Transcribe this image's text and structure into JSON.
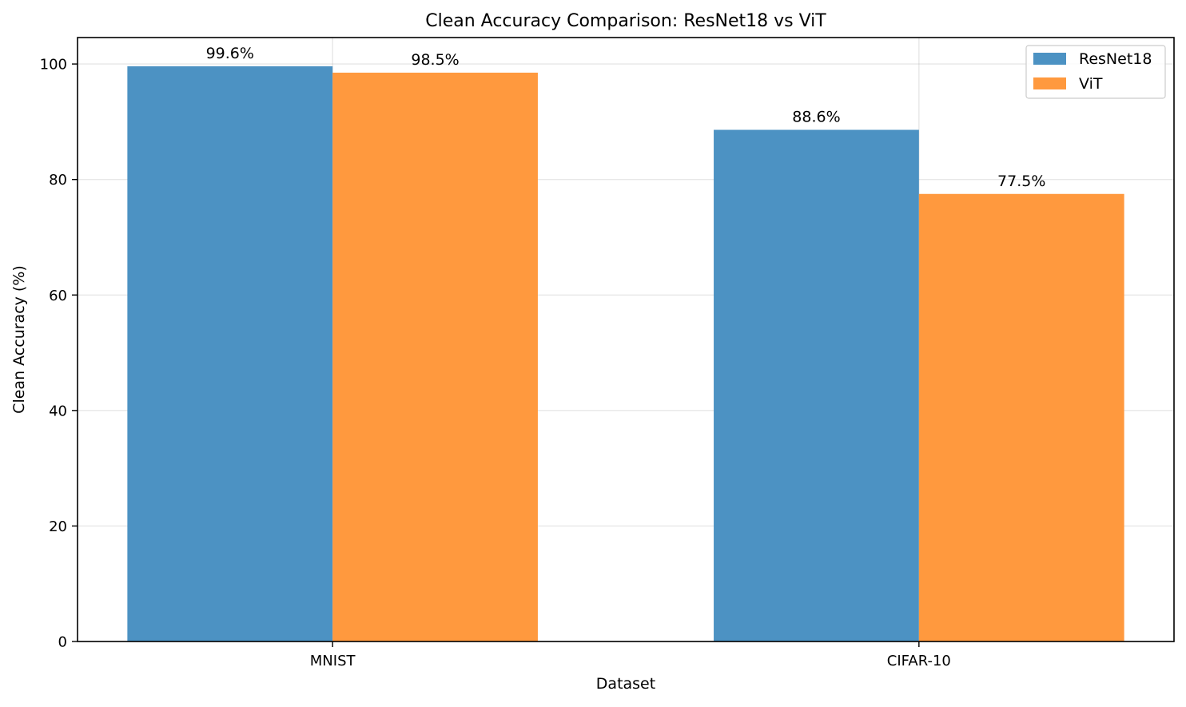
{
  "chart_data": {
    "type": "bar",
    "title": "Clean Accuracy Comparison: ResNet18 vs ViT",
    "xlabel": "Dataset",
    "ylabel": "Clean Accuracy (%)",
    "categories": [
      "MNIST",
      "CIFAR-10"
    ],
    "series": [
      {
        "name": "ResNet18",
        "color": "#4c92c3",
        "values": [
          99.6,
          88.6
        ],
        "labels": [
          "99.6%",
          "88.6%"
        ]
      },
      {
        "name": "ViT",
        "color": "#ff993e",
        "values": [
          98.5,
          77.5
        ],
        "labels": [
          "98.5%",
          "77.5%"
        ]
      }
    ],
    "ylim": [
      0,
      104.58
    ],
    "yticks": [
      0,
      20,
      40,
      60,
      80,
      100
    ],
    "grid": true,
    "legend_position": "upper-right"
  }
}
